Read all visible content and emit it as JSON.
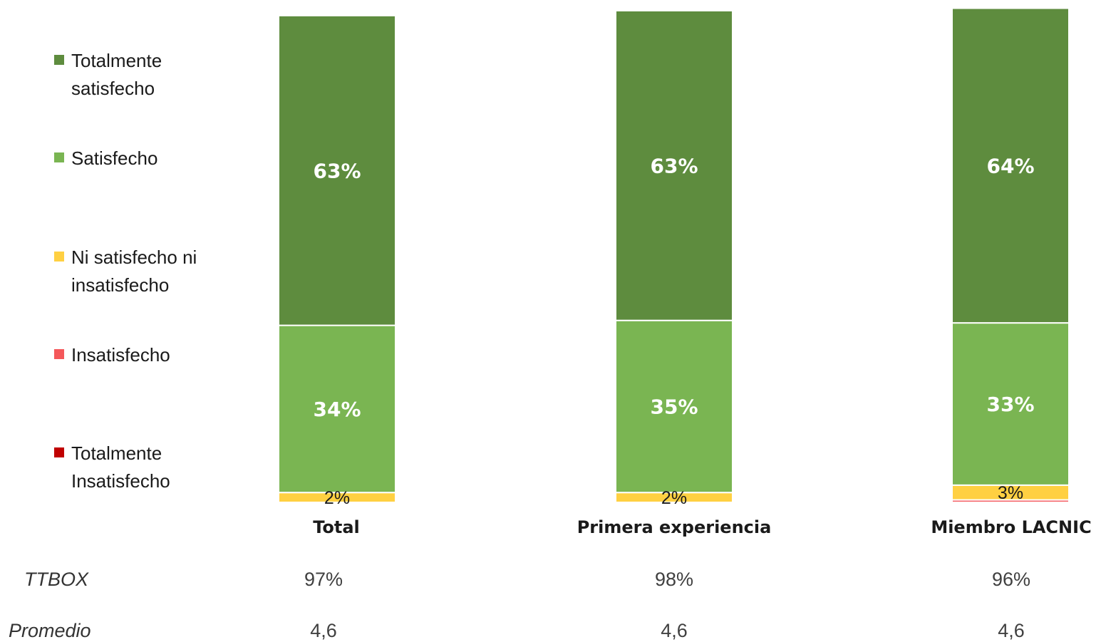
{
  "chart_data": {
    "type": "bar",
    "stacked": true,
    "ylim": [
      0,
      100
    ],
    "categories": [
      "Total",
      "Primera experiencia",
      "Miembro LACNIC"
    ],
    "series": [
      {
        "name": "Totalmente Insatisfecho",
        "color": "#c00000",
        "values": [
          0,
          0,
          0
        ]
      },
      {
        "name": "Insatisfecho",
        "color": "#f4585a",
        "values": [
          0,
          0,
          0.5
        ]
      },
      {
        "name": "Ni satisfecho ni insatisfecho",
        "color": "#ffd042",
        "values": [
          2,
          2,
          3
        ]
      },
      {
        "name": "Satisfecho",
        "color": "#7ab552",
        "values": [
          34,
          35,
          33
        ]
      },
      {
        "name": "Totalmente satisfecho",
        "color": "#5e8c3e",
        "values": [
          63,
          63,
          64
        ]
      }
    ],
    "data_labels": [
      {
        "category": 0,
        "series": 2,
        "text": "2%"
      },
      {
        "category": 0,
        "series": 3,
        "text": "34%"
      },
      {
        "category": 0,
        "series": 4,
        "text": "63%"
      },
      {
        "category": 1,
        "series": 2,
        "text": "2%"
      },
      {
        "category": 1,
        "series": 3,
        "text": "35%"
      },
      {
        "category": 1,
        "series": 4,
        "text": "63%"
      },
      {
        "category": 2,
        "series": 2,
        "text": "3%"
      },
      {
        "category": 2,
        "series": 3,
        "text": "33%"
      },
      {
        "category": 2,
        "series": 4,
        "text": "64%"
      }
    ],
    "legend": {
      "position": "left",
      "items": [
        {
          "label": "Totalmente satisfecho",
          "color": "#5e8c3e"
        },
        {
          "label": "Satisfecho",
          "color": "#7ab552"
        },
        {
          "label": "Ni satisfecho ni insatisfecho",
          "color": "#ffd042"
        },
        {
          "label": "Insatisfecho",
          "color": "#f4585a"
        },
        {
          "label": "Totalmente Insatisfecho",
          "color": "#c00000"
        }
      ]
    },
    "summary_rows": [
      {
        "label": "TTBOX",
        "values": [
          "97%",
          "98%",
          "96%"
        ]
      },
      {
        "label": "Promedio",
        "values": [
          "4,6",
          "4,6",
          "4,6"
        ]
      }
    ]
  }
}
